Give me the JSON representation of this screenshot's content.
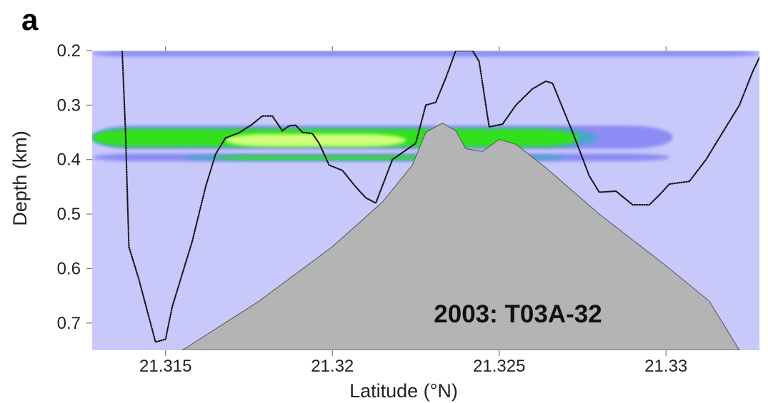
{
  "panel_label": "a",
  "chart_data": {
    "type": "heatmap",
    "title": "",
    "xlabel": "Latitude (°N)",
    "ylabel": "Depth (km)",
    "xlim": [
      21.3128,
      21.3328
    ],
    "ylim": [
      0.75,
      0.2
    ],
    "x_ticks": [
      21.315,
      21.32,
      21.325,
      21.33
    ],
    "x_tick_labels": [
      "21.315",
      "21.32",
      "21.325",
      "21.33"
    ],
    "y_ticks": [
      0.2,
      0.3,
      0.4,
      0.5,
      0.6,
      0.7
    ],
    "y_tick_labels": [
      "0.2",
      "0.3",
      "0.4",
      "0.5",
      "0.6",
      "0.7"
    ],
    "annotation": "2003: T03A-32",
    "colors": {
      "background": "#c8c8fb",
      "low": "#8b8cf4",
      "mid": "#4aa8c8",
      "high": "#33e01f",
      "peak": "#cfff7a",
      "seamount": "#b4b4b4",
      "track": "#111111"
    },
    "intensity_layers": [
      {
        "name": "low",
        "bands": [
          {
            "x": [
              21.3128,
              21.3328
            ],
            "depth": [
              0.2,
              0.211
            ]
          },
          {
            "x": [
              21.3128,
              21.3302
            ],
            "depth": [
              0.338,
              0.38
            ]
          },
          {
            "x": [
              21.3128,
              21.3301
            ],
            "depth": [
              0.389,
              0.403
            ]
          }
        ]
      },
      {
        "name": "mid",
        "bands": [
          {
            "x": [
              21.3128,
              21.3279
            ],
            "depth": [
              0.342,
              0.378
            ]
          },
          {
            "x": [
              21.3155,
              21.327
            ],
            "depth": [
              0.392,
              0.401
            ]
          }
        ]
      },
      {
        "name": "high",
        "bands": [
          {
            "x": [
              21.3128,
              21.3274
            ],
            "depth": [
              0.344,
              0.376
            ]
          },
          {
            "x": [
              21.3165,
              21.3255
            ],
            "depth": [
              0.393,
              0.4
            ]
          }
        ]
      },
      {
        "name": "peak",
        "bands": [
          {
            "x": [
              21.3168,
              21.3222
            ],
            "depth": [
              0.353,
              0.376
            ]
          }
        ]
      }
    ],
    "seamount_profile": [
      [
        21.3155,
        0.75
      ],
      [
        21.3178,
        0.66
      ],
      [
        21.32,
        0.56
      ],
      [
        21.3215,
        0.478
      ],
      [
        21.3224,
        0.41
      ],
      [
        21.3228,
        0.35
      ],
      [
        21.3233,
        0.333
      ],
      [
        21.3237,
        0.347
      ],
      [
        21.324,
        0.38
      ],
      [
        21.3245,
        0.385
      ],
      [
        21.325,
        0.363
      ],
      [
        21.3255,
        0.372
      ],
      [
        21.3264,
        0.415
      ],
      [
        21.328,
        0.5
      ],
      [
        21.33,
        0.595
      ],
      [
        21.3313,
        0.66
      ],
      [
        21.3322,
        0.75
      ]
    ],
    "ship_track": [
      [
        21.3137,
        0.2
      ],
      [
        21.3138,
        0.35
      ],
      [
        21.3139,
        0.56
      ],
      [
        21.3142,
        0.62
      ],
      [
        21.3147,
        0.735
      ],
      [
        21.315,
        0.73
      ],
      [
        21.3152,
        0.67
      ],
      [
        21.3158,
        0.55
      ],
      [
        21.3162,
        0.45
      ],
      [
        21.3165,
        0.39
      ],
      [
        21.3168,
        0.36
      ],
      [
        21.3172,
        0.351
      ],
      [
        21.3176,
        0.335
      ],
      [
        21.3179,
        0.32
      ],
      [
        21.3182,
        0.32
      ],
      [
        21.3185,
        0.347
      ],
      [
        21.3187,
        0.338
      ],
      [
        21.3189,
        0.337
      ],
      [
        21.3191,
        0.35
      ],
      [
        21.3194,
        0.352
      ],
      [
        21.3196,
        0.37
      ],
      [
        21.3199,
        0.41
      ],
      [
        21.3203,
        0.42
      ],
      [
        21.3207,
        0.45
      ],
      [
        21.321,
        0.47
      ],
      [
        21.3213,
        0.48
      ],
      [
        21.3218,
        0.4
      ],
      [
        21.3225,
        0.37
      ],
      [
        21.3228,
        0.3
      ],
      [
        21.3231,
        0.295
      ],
      [
        21.3234,
        0.25
      ],
      [
        21.3237,
        0.2
      ],
      [
        21.3242,
        0.2
      ],
      [
        21.3244,
        0.22
      ],
      [
        21.3247,
        0.34
      ],
      [
        21.3251,
        0.335
      ],
      [
        21.3255,
        0.3
      ],
      [
        21.326,
        0.27
      ],
      [
        21.3264,
        0.256
      ],
      [
        21.3266,
        0.26
      ],
      [
        21.3272,
        0.35
      ],
      [
        21.3277,
        0.43
      ],
      [
        21.328,
        0.46
      ],
      [
        21.3285,
        0.458
      ],
      [
        21.329,
        0.483
      ],
      [
        21.3295,
        0.483
      ],
      [
        21.3298,
        0.465
      ],
      [
        21.3301,
        0.445
      ],
      [
        21.3307,
        0.44
      ],
      [
        21.3312,
        0.4
      ],
      [
        21.3317,
        0.35
      ],
      [
        21.3322,
        0.3
      ],
      [
        21.3326,
        0.238
      ],
      [
        21.3329,
        0.2
      ]
    ]
  }
}
